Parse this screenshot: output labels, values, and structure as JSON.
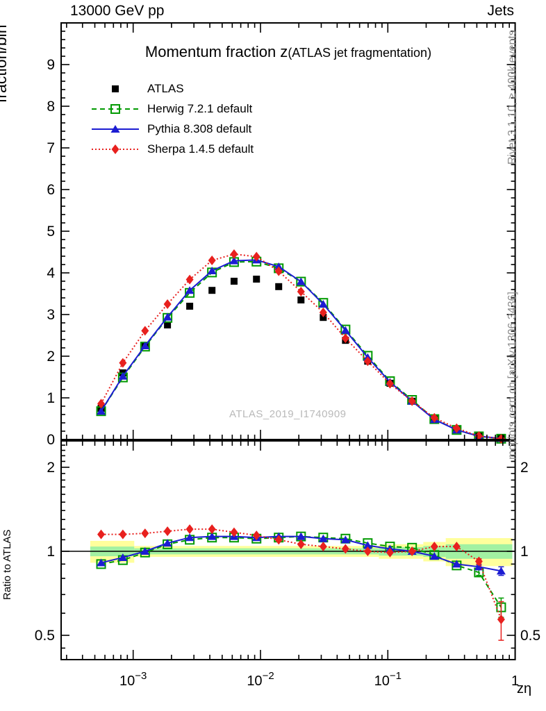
{
  "header": {
    "left": "13000 GeV pp",
    "right": "Jets"
  },
  "title": {
    "main": "Momentum fraction z",
    "paren": "(ATLAS jet fragmentation)"
  },
  "watermark": "ATLAS_2019_I1740909",
  "side_notes": {
    "top": "Rivet 3.1.10, ≥ 400k events",
    "bottom": "mcplots.cern.ch [arXiv:1306.3436]"
  },
  "axes": {
    "top_ylabel": "fraction/bin",
    "ratio_ylabel": "Ratio to ATLAS",
    "xlabel": "zη",
    "xticks": [
      {
        "v": 0.001,
        "t": "10",
        "s": "−3"
      },
      {
        "v": 0.01,
        "t": "10",
        "s": "−2"
      },
      {
        "v": 0.1,
        "t": "10",
        "s": "−1"
      },
      {
        "v": 1,
        "t": "1",
        "s": ""
      }
    ],
    "main_yticks": [
      0,
      1,
      2,
      3,
      4,
      5,
      6,
      7,
      8,
      9
    ],
    "ratio_yticks": [
      {
        "v": 2,
        "t": "2"
      },
      {
        "v": 1,
        "t": "1"
      },
      {
        "v": 0.5,
        "t": "0.5"
      }
    ]
  },
  "legend": [
    {
      "label": "ATLAS",
      "marker": "square-filled",
      "line": "none",
      "color": "#000000"
    },
    {
      "label": "Herwig 7.2.1 default",
      "marker": "square-open",
      "line": "dashed",
      "color": "#009a00"
    },
    {
      "label": "Pythia 8.308 default",
      "marker": "triangle-filled",
      "line": "solid",
      "color": "#1c1cd2"
    },
    {
      "label": "Sherpa 1.4.5 default",
      "marker": "diamond-filled",
      "line": "dotted",
      "color": "#e8201e"
    }
  ],
  "colors": {
    "frame": "#000000",
    "band_outer": "#ffff9c",
    "band_inner": "#a2f1a2",
    "watermark": "#b9b9b9",
    "side_note": "#8c8c8c"
  },
  "chart_data": {
    "type": "line",
    "xscale": "log",
    "xlim": [
      0.000272,
      1.0
    ],
    "xlabel": "zη",
    "x": [
      0.00056,
      0.00083,
      0.00124,
      0.00186,
      0.00278,
      0.00416,
      0.0062,
      0.0093,
      0.0139,
      0.0208,
      0.0311,
      0.0465,
      0.0695,
      0.104,
      0.155,
      0.232,
      0.347,
      0.519,
      0.776
    ],
    "main_panel": {
      "ylabel": "fraction/bin",
      "yscale": "linear",
      "ylim": [
        0,
        10
      ],
      "series": [
        {
          "name": "ATLAS",
          "marker": "square-filled",
          "line": "none",
          "color": "#000000",
          "values": [
            0.75,
            1.6,
            2.25,
            2.75,
            3.2,
            3.58,
            3.8,
            3.85,
            3.67,
            3.35,
            2.93,
            2.38,
            1.88,
            1.35,
            0.92,
            0.5,
            0.26,
            0.09,
            0.03
          ]
        },
        {
          "name": "Herwig 7.2.1 default",
          "marker": "square-open",
          "line": "dashed",
          "color": "#009a00",
          "values": [
            0.68,
            1.49,
            2.23,
            2.92,
            3.52,
            4.01,
            4.26,
            4.27,
            4.11,
            3.79,
            3.28,
            2.64,
            2.01,
            1.4,
            0.95,
            0.49,
            0.23,
            0.076,
            0.019
          ]
        },
        {
          "name": "Pythia 8.308 default",
          "marker": "triangle-filled",
          "line": "solid",
          "color": "#1c1cd2",
          "values": [
            0.68,
            1.52,
            2.25,
            2.94,
            3.58,
            4.05,
            4.29,
            4.31,
            4.15,
            3.79,
            3.25,
            2.62,
            1.97,
            1.38,
            0.92,
            0.48,
            0.23,
            0.079,
            0.026
          ]
        },
        {
          "name": "Sherpa 1.4.5 default",
          "marker": "diamond-filled",
          "line": "dotted",
          "color": "#e8201e",
          "values": [
            0.86,
            1.84,
            2.61,
            3.25,
            3.84,
            4.3,
            4.45,
            4.39,
            4.04,
            3.55,
            3.05,
            2.43,
            1.88,
            1.34,
            0.92,
            0.52,
            0.27,
            0.083,
            0.017
          ]
        }
      ]
    },
    "ratio_panel": {
      "ylabel": "Ratio to ATLAS",
      "yscale": "log",
      "ylim": [
        0.41,
        2.49
      ],
      "reference_line": 1,
      "bands": {
        "outer_color": "#ffff9c",
        "inner_color": "#a2f1a2",
        "segments": [
          {
            "x0": 0.00046,
            "x1": 0.00102,
            "outer": [
              0.91,
              1.09
            ],
            "inner": [
              0.96,
              1.04
            ]
          },
          {
            "x0": 0.00102,
            "x1": 0.085,
            "outer": [
              0.955,
              1.045
            ],
            "inner": [
              0.975,
              1.025
            ]
          },
          {
            "x0": 0.085,
            "x1": 0.19,
            "outer": [
              0.94,
              1.06
            ],
            "inner": [
              0.965,
              1.035
            ]
          },
          {
            "x0": 0.19,
            "x1": 0.285,
            "outer": [
              0.92,
              1.08
            ],
            "inner": [
              0.955,
              1.045
            ]
          },
          {
            "x0": 0.285,
            "x1": 0.95,
            "outer": [
              0.885,
              1.115
            ],
            "inner": [
              0.94,
              1.06
            ]
          }
        ]
      },
      "series": [
        {
          "name": "Herwig 7.2.1 default",
          "marker": "square-open",
          "line": "dashed",
          "color": "#009a00",
          "values": [
            0.9,
            0.93,
            0.99,
            1.06,
            1.1,
            1.12,
            1.12,
            1.11,
            1.12,
            1.13,
            1.12,
            1.11,
            1.07,
            1.04,
            1.03,
            0.97,
            0.89,
            0.84,
            0.63
          ],
          "yerr": [
            0,
            0,
            0,
            0,
            0,
            0,
            0,
            0,
            0,
            0,
            0,
            0,
            0,
            0,
            0,
            0,
            0,
            0.02,
            0.05
          ]
        },
        {
          "name": "Pythia 8.308 default",
          "marker": "triangle-filled",
          "line": "solid",
          "color": "#1c1cd2",
          "values": [
            0.91,
            0.95,
            1.0,
            1.07,
            1.12,
            1.13,
            1.13,
            1.12,
            1.13,
            1.13,
            1.11,
            1.1,
            1.05,
            1.02,
            1.0,
            0.96,
            0.9,
            0.88,
            0.85
          ],
          "yerr": [
            0,
            0,
            0,
            0,
            0,
            0,
            0,
            0,
            0,
            0,
            0,
            0,
            0,
            0,
            0,
            0,
            0,
            0.012,
            0.03
          ]
        },
        {
          "name": "Sherpa 1.4.5 default",
          "marker": "diamond-filled",
          "line": "dotted",
          "color": "#e8201e",
          "values": [
            1.15,
            1.15,
            1.16,
            1.18,
            1.2,
            1.2,
            1.17,
            1.14,
            1.1,
            1.06,
            1.04,
            1.02,
            1.0,
            0.99,
            1.0,
            1.04,
            1.04,
            0.92,
            0.57
          ],
          "yerr": [
            0,
            0,
            0,
            0,
            0,
            0,
            0,
            0,
            0,
            0,
            0,
            0,
            0,
            0,
            0,
            0,
            0,
            0.02,
            0.09
          ]
        }
      ]
    }
  }
}
